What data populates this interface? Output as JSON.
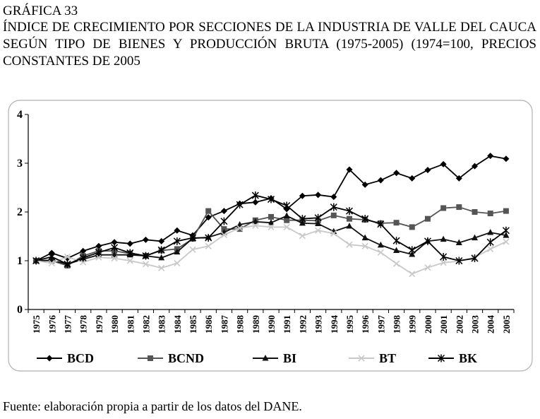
{
  "figure_label": "GRÁFICA 33",
  "figure_title": "ÍNDICE DE CRECIMIENTO POR SECCIONES DE LA INDUSTRIA DE VALLE DEL CAUCA SEGÚN TIPO DE BIENES Y PRODUCCIÓN BRUTA (1975-2005) (1974=100, PRECIOS CONSTANTES DE 2005",
  "source_note": "Fuente: elaboración propia a partir de los datos del DANE.",
  "chart_data": {
    "type": "line",
    "title": "",
    "xlabel": "",
    "ylabel": "",
    "categories": [
      "1975",
      "1976",
      "1977",
      "1978",
      "1979",
      "1980",
      "1981",
      "1982",
      "1983",
      "1984",
      "1985",
      "1986",
      "1987",
      "1988",
      "1989",
      "1990",
      "1991",
      "1992",
      "1993",
      "1994",
      "1995",
      "1996",
      "1997",
      "1998",
      "1999",
      "2000",
      "2001",
      "2002",
      "2003",
      "2004",
      "2005"
    ],
    "ylim": [
      0,
      4
    ],
    "yticks": [
      0,
      1,
      2,
      3,
      4
    ],
    "grid": false,
    "legend_position": "bottom",
    "series": [
      {
        "name": "BCD",
        "color": "#000000",
        "marker": "diamond",
        "values": [
          1.0,
          1.16,
          1.05,
          1.2,
          1.3,
          1.38,
          1.35,
          1.43,
          1.4,
          1.62,
          1.52,
          1.89,
          2.02,
          2.17,
          2.2,
          2.28,
          2.06,
          2.33,
          2.35,
          2.31,
          2.87,
          2.56,
          2.65,
          2.8,
          2.69,
          2.86,
          2.98,
          2.69,
          2.94,
          3.15,
          3.09
        ]
      },
      {
        "name": "BCND",
        "color": "#555555",
        "marker": "square",
        "values": [
          1.0,
          1.0,
          0.9,
          1.1,
          1.2,
          1.2,
          1.15,
          1.1,
          1.21,
          1.24,
          1.45,
          2.02,
          1.65,
          1.65,
          1.83,
          1.9,
          1.83,
          1.83,
          1.82,
          1.93,
          1.86,
          1.84,
          1.77,
          1.78,
          1.69,
          1.86,
          2.08,
          2.1,
          2.0,
          1.97,
          2.02
        ]
      },
      {
        "name": "BI",
        "color": "#111111",
        "marker": "triangle",
        "values": [
          1.0,
          1.01,
          0.93,
          1.03,
          1.12,
          1.12,
          1.12,
          1.1,
          1.06,
          1.18,
          1.46,
          1.48,
          1.58,
          1.74,
          1.8,
          1.78,
          1.92,
          1.77,
          1.76,
          1.6,
          1.71,
          1.47,
          1.32,
          1.21,
          1.13,
          1.4,
          1.44,
          1.37,
          1.47,
          1.58,
          1.52
        ]
      },
      {
        "name": "BT",
        "color": "#c8c8c8",
        "marker": "x",
        "values": [
          1.0,
          0.95,
          1.08,
          0.97,
          1.07,
          1.05,
          1.0,
          0.93,
          0.85,
          0.95,
          1.23,
          1.3,
          1.53,
          1.67,
          1.72,
          1.69,
          1.69,
          1.51,
          1.62,
          1.56,
          1.33,
          1.3,
          1.17,
          0.94,
          0.73,
          0.86,
          0.96,
          0.99,
          1.07,
          1.24,
          1.39
        ]
      },
      {
        "name": "BK",
        "color": "#000000",
        "marker": "asterisk",
        "values": [
          1.0,
          1.08,
          0.93,
          1.06,
          1.17,
          1.27,
          1.16,
          1.1,
          1.22,
          1.4,
          1.47,
          1.47,
          1.81,
          2.15,
          2.34,
          2.26,
          2.13,
          1.86,
          1.88,
          2.1,
          2.02,
          1.86,
          1.75,
          1.41,
          1.22,
          1.4,
          1.08,
          1.0,
          1.05,
          1.38,
          1.62
        ]
      }
    ]
  }
}
